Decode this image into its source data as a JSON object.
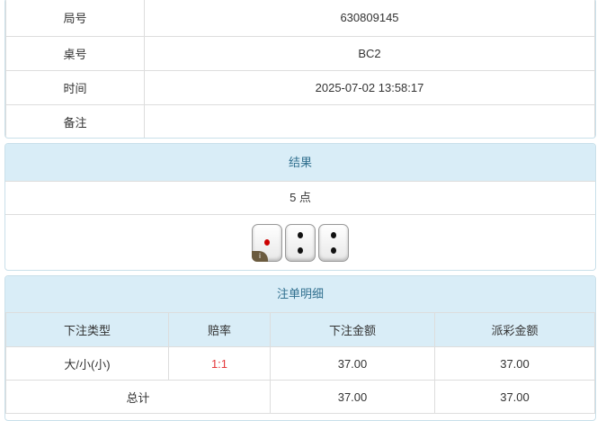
{
  "info": {
    "rows": [
      {
        "label": "局号",
        "value": "630809145"
      },
      {
        "label": "桌号",
        "value": "BC2"
      },
      {
        "label": "时间",
        "value": "2025-07-02 13:58:17"
      },
      {
        "label": "备注",
        "value": ""
      }
    ]
  },
  "result": {
    "title": "结果",
    "points": "5 点",
    "dice": [
      1,
      2,
      2
    ],
    "info_badge": "i"
  },
  "bets": {
    "title": "注单明细",
    "columns": [
      "下注类型",
      "赔率",
      "下注金额",
      "派彩金额"
    ],
    "rows": [
      {
        "type": "大/小(小)",
        "odds": "1:1",
        "amount": "37.00",
        "payout": "37.00"
      }
    ],
    "total": {
      "label": "总计",
      "amount": "37.00",
      "payout": "37.00"
    }
  },
  "colors": {
    "header_bg": "#d9edf7",
    "header_text": "#31708f",
    "odds": "#e4393c"
  }
}
